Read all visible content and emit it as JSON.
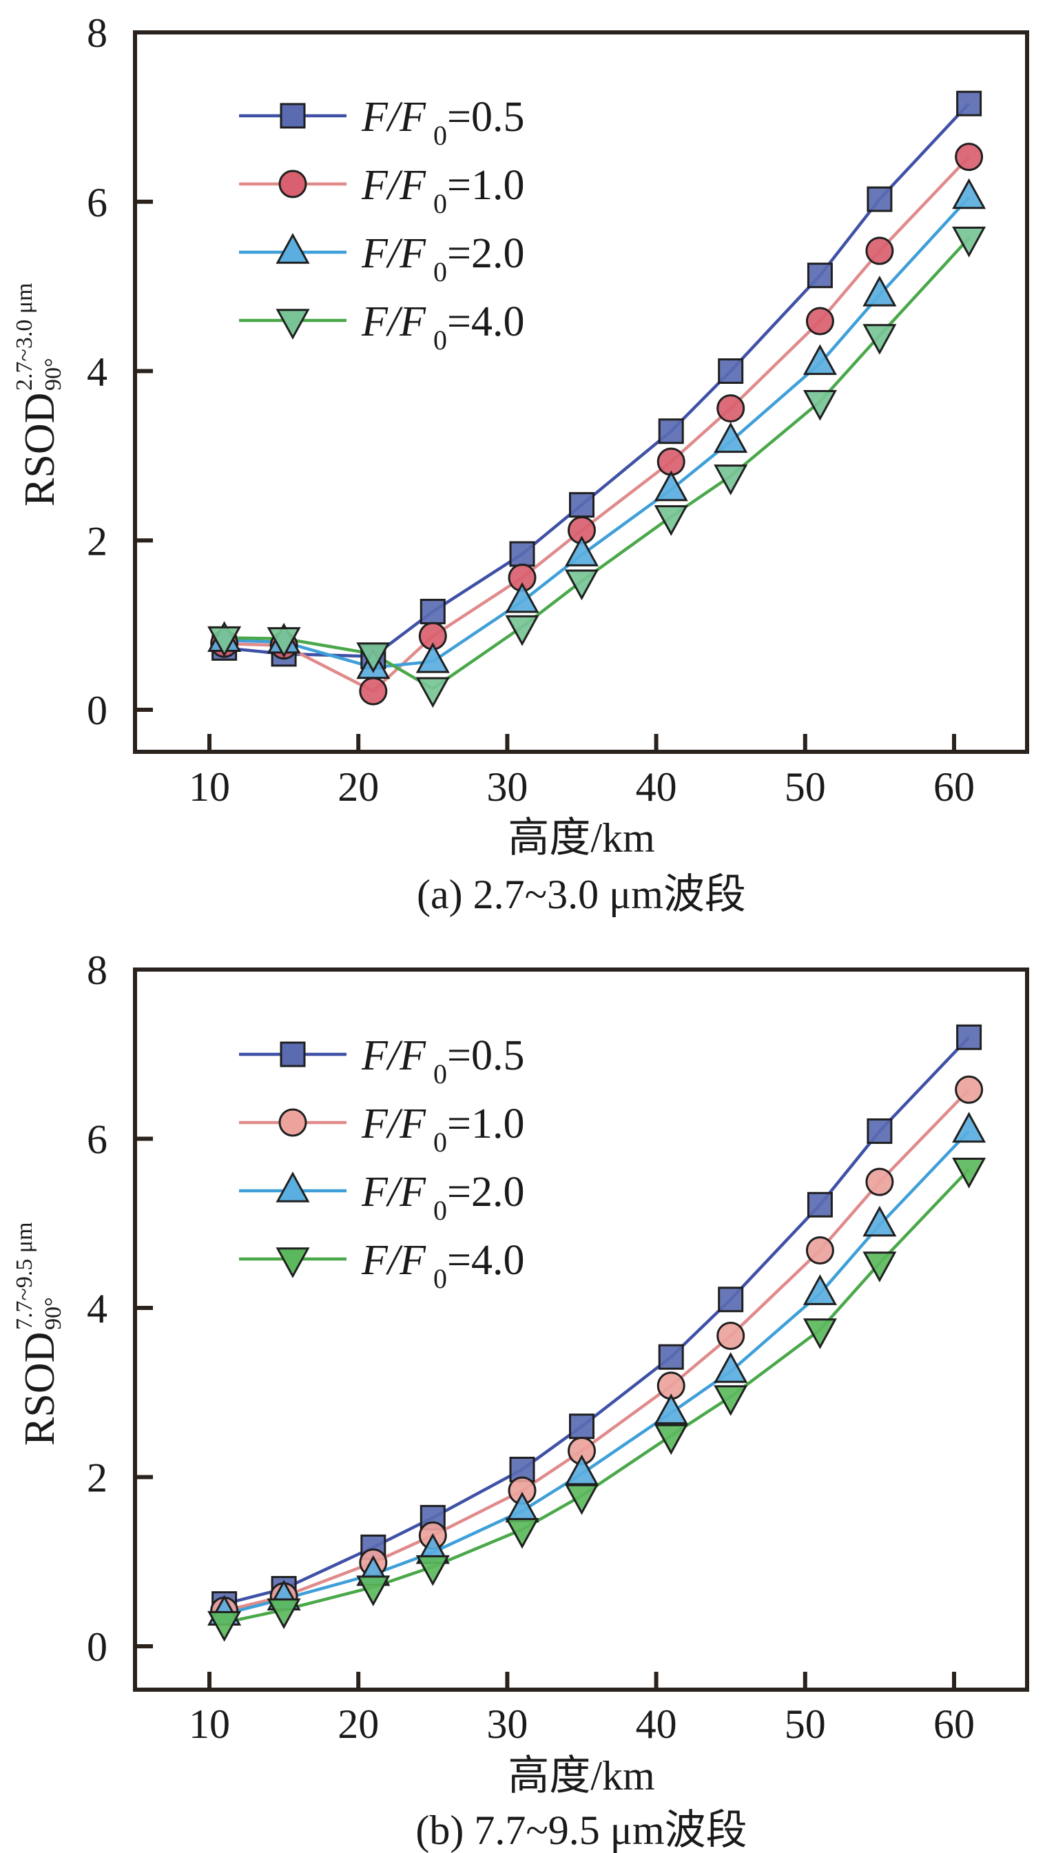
{
  "chart_data": [
    {
      "type": "line",
      "panel": "a",
      "caption": "(a) 2.7~3.0 μm波段",
      "xlabel": "高度/km",
      "ylabel": {
        "main": "RSOD",
        "superscript": "2.7~3.0 μm",
        "subscript": "90°"
      },
      "xlim": [
        5,
        65
      ],
      "ylim": [
        -0.5,
        8
      ],
      "xticks": [
        10,
        20,
        30,
        40,
        50,
        60
      ],
      "yticks": [
        0,
        2,
        4,
        6,
        8
      ],
      "grid": false,
      "legend_position": "top-left",
      "x": [
        11,
        15,
        21,
        25,
        31,
        35,
        41,
        45,
        51,
        55,
        61
      ],
      "series": [
        {
          "name": "F/F0=0.5",
          "label_main": "F/F",
          "label_sub": "0",
          "label_value": "=0.5",
          "marker": "square",
          "line_color": "#3f51a6",
          "fill_color": "#5a6bb2",
          "values": [
            0.73,
            0.66,
            0.63,
            1.16,
            1.84,
            2.42,
            3.29,
            4.0,
            5.13,
            6.03,
            7.16
          ]
        },
        {
          "name": "F/F0=1.0",
          "label_main": "F/F",
          "label_sub": "0",
          "label_value": "=1.0",
          "marker": "circle",
          "line_color": "#e08a8a",
          "fill_color": "#d9606e",
          "values": [
            0.78,
            0.76,
            0.22,
            0.87,
            1.56,
            2.12,
            2.93,
            3.56,
            4.59,
            5.42,
            6.53
          ]
        },
        {
          "name": "F/F0=2.0",
          "label_main": "F/F",
          "label_sub": "0",
          "label_value": "=2.0",
          "marker": "triangle-up",
          "line_color": "#3f9fd8",
          "fill_color": "#5aaee0",
          "values": [
            0.82,
            0.8,
            0.5,
            0.57,
            1.28,
            1.83,
            2.6,
            3.17,
            4.09,
            4.9,
            6.05
          ]
        },
        {
          "name": "F/F0=4.0",
          "label_main": "F/F",
          "label_sub": "0",
          "label_value": "=4.0",
          "marker": "triangle-down",
          "line_color": "#4aa84a",
          "fill_color": "#78c496",
          "values": [
            0.85,
            0.84,
            0.66,
            0.25,
            0.98,
            1.52,
            2.28,
            2.76,
            3.64,
            4.42,
            5.57
          ]
        }
      ]
    },
    {
      "type": "line",
      "panel": "b",
      "caption": "(b) 7.7~9.5 μm波段",
      "xlabel": "高度/km",
      "ylabel": {
        "main": "RSOD",
        "superscript": "7.7~9.5 μm",
        "subscript": "90°"
      },
      "xlim": [
        5,
        65
      ],
      "ylim": [
        -0.5,
        8
      ],
      "xticks": [
        10,
        20,
        30,
        40,
        50,
        60
      ],
      "yticks": [
        0,
        2,
        4,
        6,
        8
      ],
      "grid": false,
      "legend_position": "top-left",
      "x": [
        11,
        15,
        21,
        25,
        31,
        35,
        41,
        45,
        51,
        55,
        61
      ],
      "series": [
        {
          "name": "F/F0=0.5",
          "label_main": "F/F",
          "label_sub": "0",
          "label_value": "=0.5",
          "marker": "square",
          "line_color": "#3f51a6",
          "fill_color": "#5a6bb2",
          "values": [
            0.5,
            0.68,
            1.17,
            1.52,
            2.09,
            2.6,
            3.42,
            4.1,
            5.22,
            6.09,
            7.2
          ]
        },
        {
          "name": "F/F0=1.0",
          "label_main": "F/F",
          "label_sub": "0",
          "label_value": "=1.0",
          "marker": "circle",
          "line_color": "#e08a8a",
          "fill_color": "#eba39c",
          "values": [
            0.42,
            0.59,
            0.99,
            1.31,
            1.84,
            2.31,
            3.08,
            3.67,
            4.68,
            5.49,
            6.58
          ]
        },
        {
          "name": "F/F0=2.0",
          "label_main": "F/F",
          "label_sub": "0",
          "label_value": "=2.0",
          "marker": "triangle-up",
          "line_color": "#3f9fd8",
          "fill_color": "#5aaee0",
          "values": [
            0.38,
            0.56,
            0.85,
            1.11,
            1.6,
            2.04,
            2.76,
            3.25,
            4.17,
            4.98,
            6.09
          ]
        },
        {
          "name": "F/F0=4.0",
          "label_main": "F/F",
          "label_sub": "0",
          "label_value": "=4.0",
          "marker": "triangle-down",
          "line_color": "#4aa84a",
          "fill_color": "#5cb85c",
          "values": [
            0.28,
            0.43,
            0.7,
            0.94,
            1.38,
            1.78,
            2.49,
            2.95,
            3.74,
            4.53,
            5.64
          ]
        }
      ]
    }
  ]
}
